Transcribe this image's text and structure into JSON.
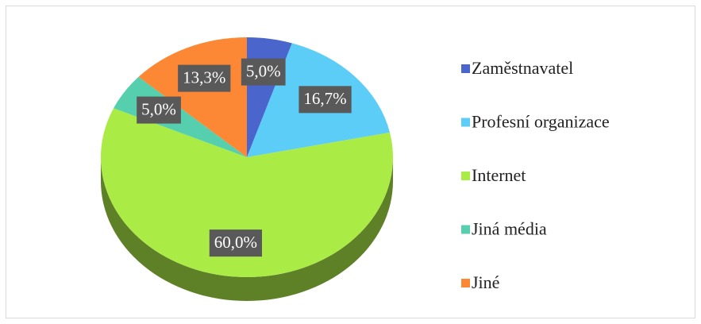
{
  "chart_data": {
    "type": "pie",
    "categories": [
      "Zaměstnavatel",
      "Profesní organizace",
      "Internet",
      "Jiná média",
      "Jiné"
    ],
    "values": [
      5.0,
      16.7,
      60.0,
      5.0,
      13.3
    ],
    "value_labels": [
      "5,0%",
      "16,7%",
      "60,0%",
      "5,0%",
      "13,3%"
    ],
    "colors": [
      "#4a66cc",
      "#5bcdf6",
      "#abeb46",
      "#55cfad",
      "#fc8734"
    ],
    "legend": "right"
  }
}
